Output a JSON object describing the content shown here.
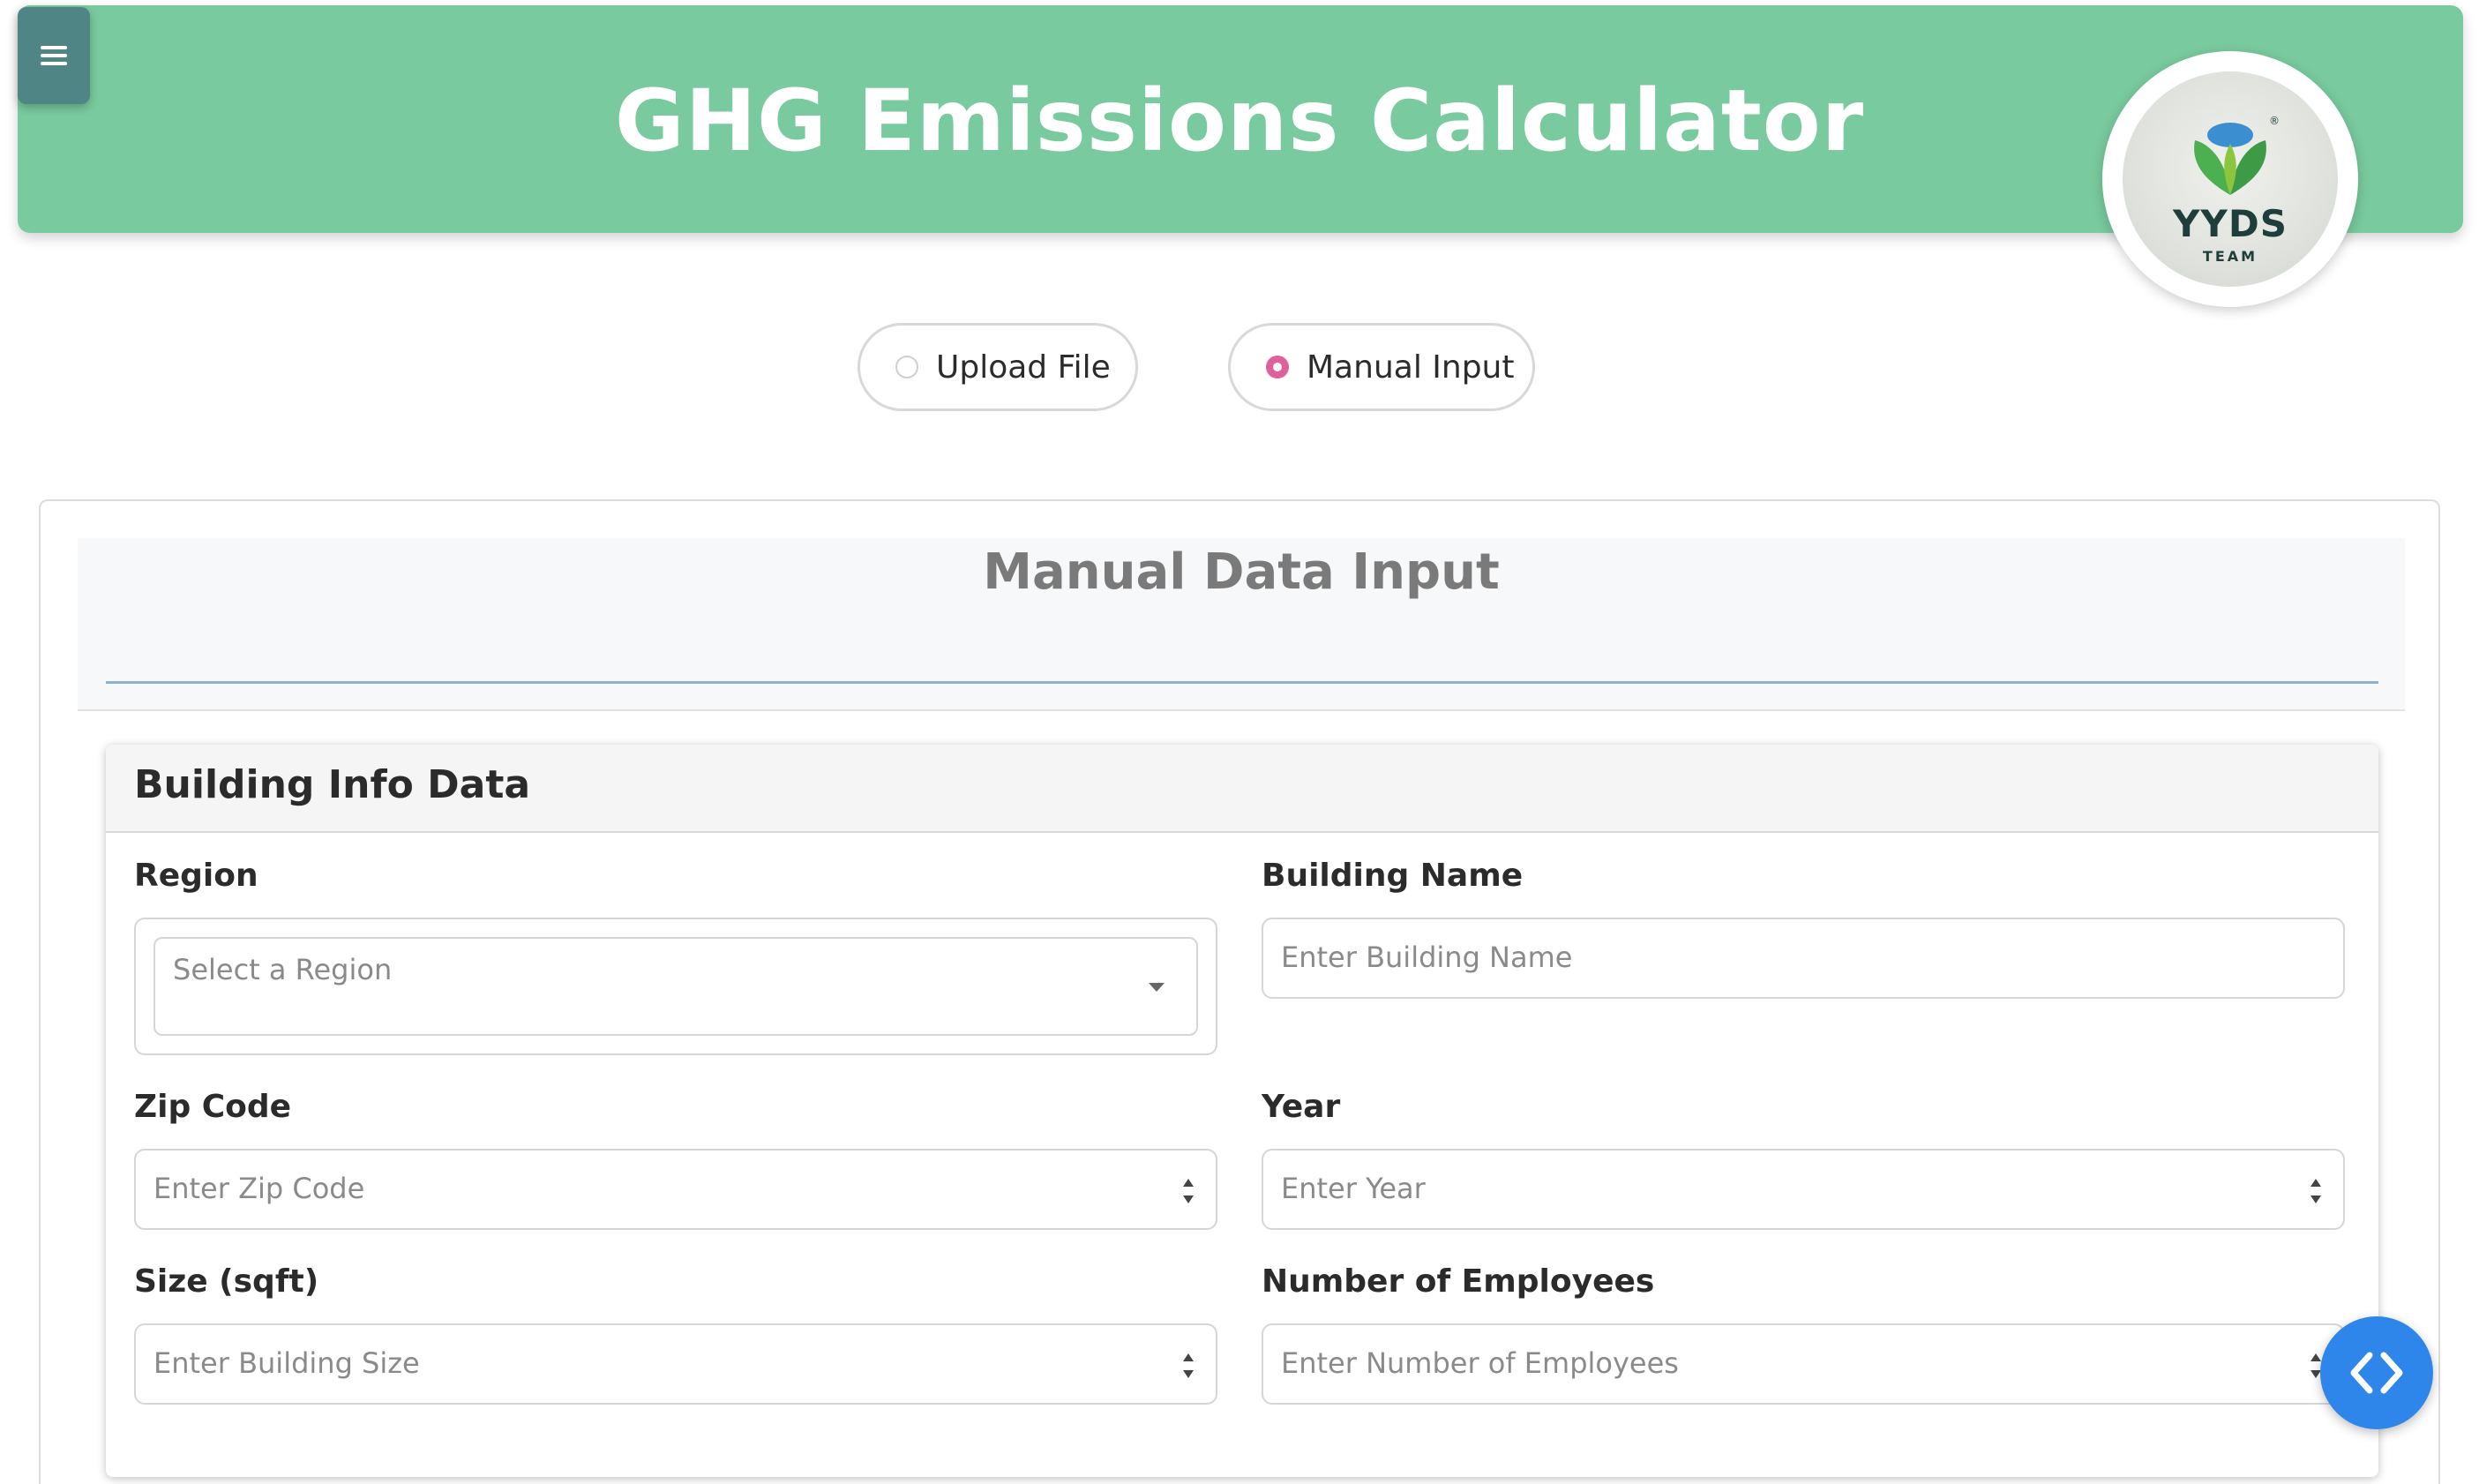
{
  "header": {
    "menu_icon": "hamburger-menu-icon",
    "title": "GHG Emissions Calculator",
    "logo": {
      "text": "YYDS",
      "subtext": "TEAM",
      "mark": "®"
    }
  },
  "mode_toggle": {
    "options": [
      {
        "label": "Upload File",
        "selected": false
      },
      {
        "label": "Manual Input",
        "selected": true
      }
    ],
    "accent_color": "#e0609a"
  },
  "section": {
    "title": "Manual Data Input"
  },
  "building_info": {
    "title": "Building Info Data",
    "fields": {
      "region": {
        "label": "Region",
        "placeholder": "Select a Region"
      },
      "building_name": {
        "label": "Building Name",
        "placeholder": "Enter Building Name"
      },
      "zip_code": {
        "label": "Zip Code",
        "placeholder": "Enter Zip Code"
      },
      "year": {
        "label": "Year",
        "placeholder": "Enter Year"
      },
      "size": {
        "label": "Size (sqft)",
        "placeholder": "Enter Building Size"
      },
      "employees": {
        "label": "Number of Employees",
        "placeholder": "Enter Number of Employees"
      }
    }
  },
  "fab": {
    "icon": "code-brackets-icon"
  },
  "colors": {
    "header_bg": "#79ca9e",
    "menu_bg": "#4f8585",
    "fab_bg": "#2e86ea"
  }
}
